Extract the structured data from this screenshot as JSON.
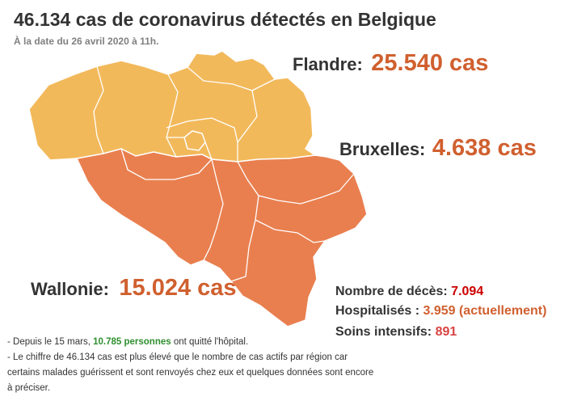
{
  "header": {
    "title": "46.134 cas de coronavirus détectés en Belgique",
    "subtitle": "À la date du 26 avril 2020 à 11h."
  },
  "regions": {
    "flandre": {
      "name": "Flandre:",
      "cases": "25.540 cas",
      "color": "#f2b95b"
    },
    "bruxelles": {
      "name": "Bruxelles:",
      "cases": "4.638 cas",
      "color": "#f2b95b"
    },
    "wallonie": {
      "name": "Wallonie:",
      "cases": "15.024 cas",
      "color": "#e97f4f"
    }
  },
  "stats": {
    "deces_label": "Nombre de décès:",
    "deces_value": "7.094",
    "hospital_label": "Hospitalisés :",
    "hospital_value": "3.959 (actuellement)",
    "icu_label": "Soins intensifs:",
    "icu_value": "891"
  },
  "notes": {
    "line1_prefix": "- Depuis le 15 mars,",
    "line1_highlight": "10.785 personnes",
    "line1_suffix": "ont quitté l'hôpital.",
    "line2": "- Le chiffre de 46.134 cas est plus élevé que le nombre de cas actifs par région car certains malades guérissent et sont renvoyés chez eux et quelques données sont encore à préciser."
  }
}
